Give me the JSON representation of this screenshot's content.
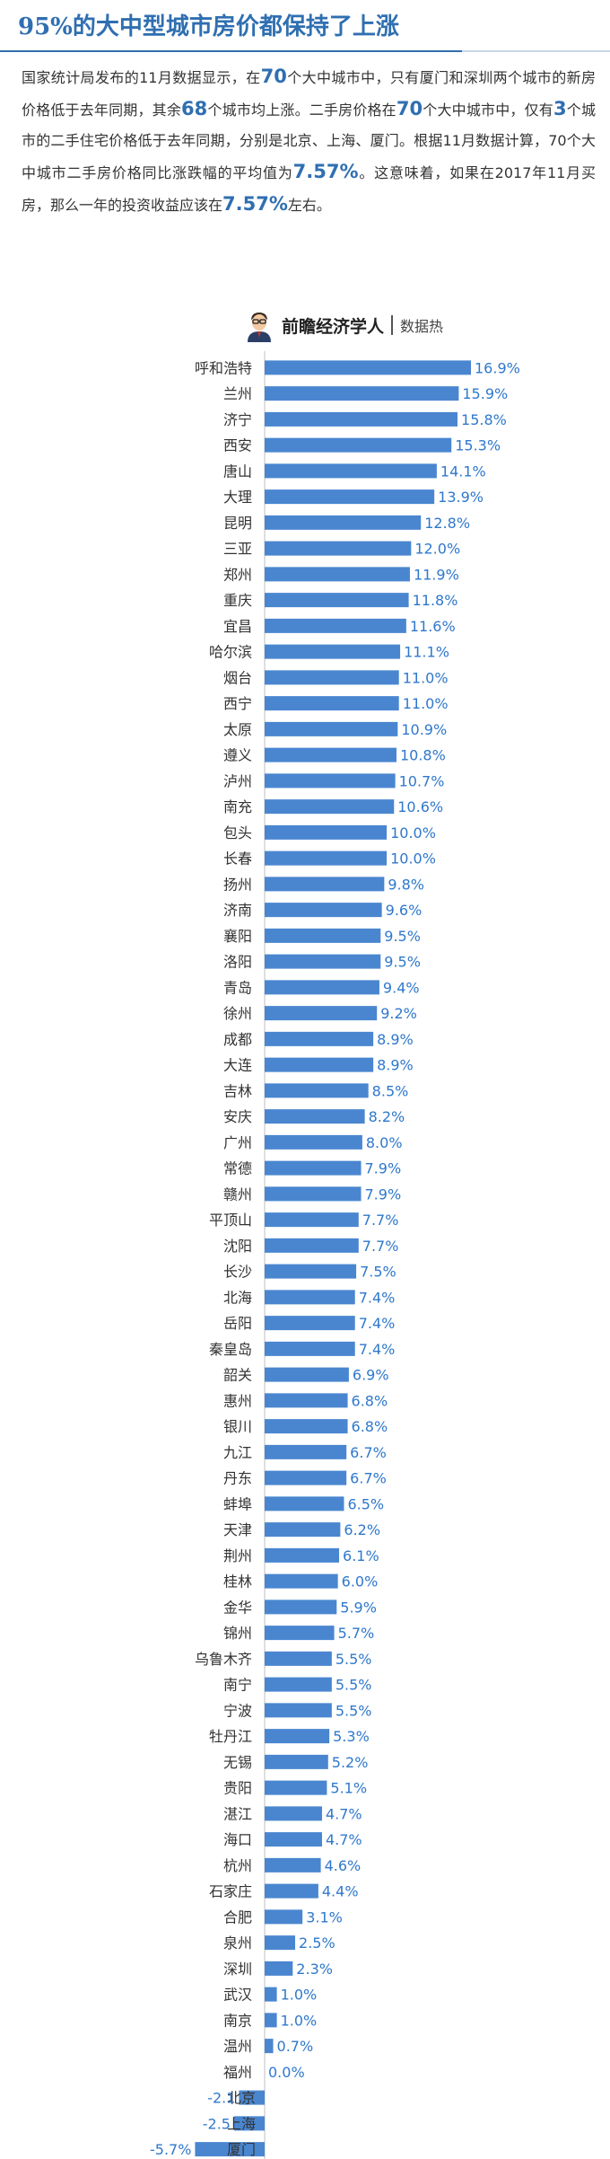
{
  "header": {
    "title": "95%的大中型城市房价都保持了上涨"
  },
  "intro": {
    "segments": [
      {
        "text": "国家统计局发布的11月数据显示，在",
        "hl": false
      },
      {
        "text": "70",
        "hl": true
      },
      {
        "text": "个大中城市中，只有厦门和深圳两个城市的新房价格低于去年同期，其余",
        "hl": false
      },
      {
        "text": "68",
        "hl": true
      },
      {
        "text": "个城市均上涨。二手房价格在",
        "hl": false
      },
      {
        "text": "70",
        "hl": true
      },
      {
        "text": "个大中城市中，仅有",
        "hl": false
      },
      {
        "text": "3",
        "hl": true
      },
      {
        "text": "个城市的二手住宅价格低于去年同期，分别是北京、上海、厦门。根据11月数据计算，70个大中城市二手房价格同比涨跌幅的平均值为",
        "hl": false
      },
      {
        "text": "7.57%",
        "hl": true
      },
      {
        "text": "。这意味着，如果在2017年11月买房，那么一年的投资收益应该在",
        "hl": false
      },
      {
        "text": "7.57%",
        "hl": true
      },
      {
        "text": "左右。",
        "hl": false
      }
    ]
  },
  "brand": {
    "name": "前瞻经济学人",
    "sub": "数据热",
    "icon": "person-avatar-icon"
  },
  "colors": {
    "accent": "#2f6fb1",
    "bar": "#4a86d0",
    "value_label": "#2f78cc"
  },
  "chart_data": {
    "type": "bar",
    "orientation": "horizontal",
    "title": "",
    "xlabel": "",
    "ylabel": "",
    "value_suffix": "%",
    "categories": [
      "呼和浩特",
      "兰州",
      "济宁",
      "西安",
      "唐山",
      "大理",
      "昆明",
      "三亚",
      "郑州",
      "重庆",
      "宜昌",
      "哈尔滨",
      "烟台",
      "西宁",
      "太原",
      "遵义",
      "泸州",
      "南充",
      "包头",
      "长春",
      "扬州",
      "济南",
      "襄阳",
      "洛阳",
      "青岛",
      "徐州",
      "成都",
      "大连",
      "吉林",
      "安庆",
      "广州",
      "常德",
      "赣州",
      "平顶山",
      "沈阳",
      "长沙",
      "北海",
      "岳阳",
      "秦皇岛",
      "韶关",
      "惠州",
      "银川",
      "九江",
      "丹东",
      "蚌埠",
      "天津",
      "荆州",
      "桂林",
      "金华",
      "锦州",
      "乌鲁木齐",
      "南宁",
      "宁波",
      "牡丹江",
      "无锡",
      "贵阳",
      "湛江",
      "海口",
      "杭州",
      "石家庄",
      "合肥",
      "泉州",
      "深圳",
      "武汉",
      "南京",
      "温州",
      "福州",
      "北京",
      "上海",
      "厦门"
    ],
    "values": [
      16.9,
      15.9,
      15.8,
      15.3,
      14.1,
      13.9,
      12.8,
      12.0,
      11.9,
      11.8,
      11.6,
      11.1,
      11.0,
      11.0,
      10.9,
      10.8,
      10.7,
      10.6,
      10.0,
      10.0,
      9.8,
      9.6,
      9.5,
      9.5,
      9.4,
      9.2,
      8.9,
      8.9,
      8.5,
      8.2,
      8.0,
      7.9,
      7.9,
      7.7,
      7.7,
      7.5,
      7.4,
      7.4,
      7.4,
      6.9,
      6.8,
      6.8,
      6.7,
      6.7,
      6.5,
      6.2,
      6.1,
      6.0,
      5.9,
      5.7,
      5.5,
      5.5,
      5.5,
      5.3,
      5.2,
      5.1,
      4.7,
      4.7,
      4.6,
      4.4,
      3.1,
      2.5,
      2.3,
      1.0,
      1.0,
      0.7,
      0.0,
      -2.1,
      -2.5,
      -5.7
    ],
    "value_labels": [
      "16.9%",
      "15.9%",
      "15.8%",
      "15.3%",
      "14.1%",
      "13.9%",
      "12.8%",
      "12.0%",
      "11.9%",
      "11.8%",
      "11.6%",
      "11.1%",
      "11.0%",
      "11.0%",
      "10.9%",
      "10.8%",
      "10.7%",
      "10.6%",
      "10.0%",
      "10.0%",
      "9.8%",
      "9.6%",
      "9.5%",
      "9.5%",
      "9.4%",
      "9.2%",
      "8.9%",
      "8.9%",
      "8.5%",
      "8.2%",
      "8.0%",
      "7.9%",
      "7.9%",
      "7.7%",
      "7.7%",
      "7.5%",
      "7.4%",
      "7.4%",
      "7.4%",
      "6.9%",
      "6.8%",
      "6.8%",
      "6.7%",
      "6.7%",
      "6.5%",
      "6.2%",
      "6.1%",
      "6.0%",
      "5.9%",
      "5.7%",
      "5.5%",
      "5.5%",
      "5.5%",
      "5.3%",
      "5.2%",
      "5.1%",
      "4.7%",
      "4.7%",
      "4.6%",
      "4.4%",
      "3.1%",
      "2.5%",
      "2.3%",
      "1.0%",
      "1.0%",
      "0.7%",
      "0.0%",
      "-2.1",
      "-2.5",
      "-5.7%"
    ],
    "xlim": [
      -5.7,
      16.9
    ],
    "grid": false,
    "legend": "none"
  }
}
